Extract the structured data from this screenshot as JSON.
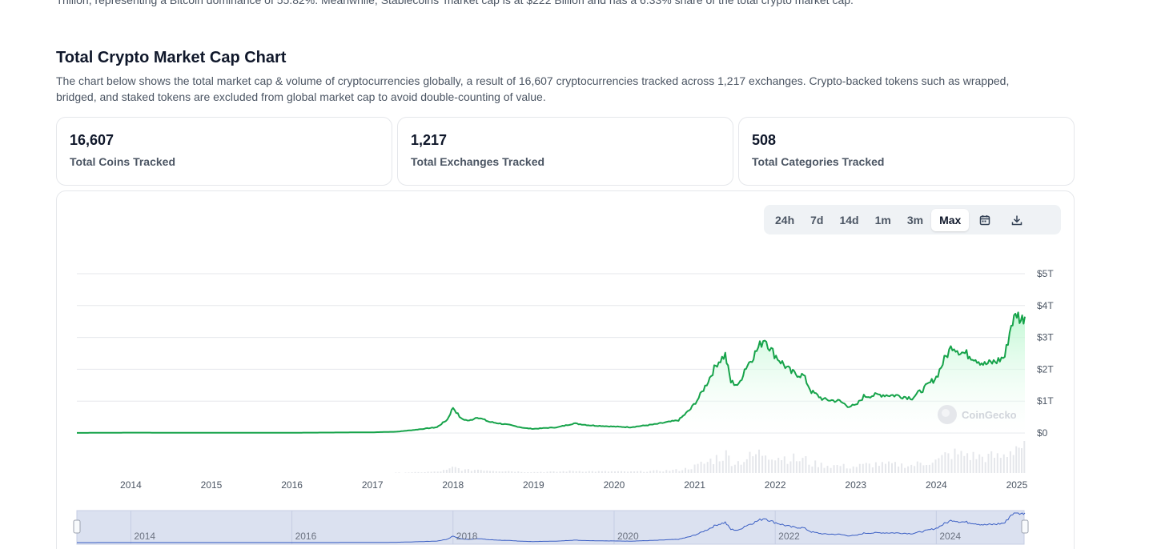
{
  "intro": {
    "text": "Trillion, representing a Bitcoin dominance of 55.82%. Meanwhile, Stablecoins' market cap is at $222 Billion and has a 6.33% share of the total crypto market cap."
  },
  "section": {
    "title": "Total Crypto Market Cap Chart",
    "description": "The chart below shows the total market cap & volume of cryptocurrencies globally, a result of 16,607 cryptocurrencies tracked across 1,217 exchanges. Crypto-backed tokens such as wrapped, bridged, and staked tokens are excluded from global market cap to avoid double-counting of value."
  },
  "stats": [
    {
      "value": "16,607",
      "label": "Total Coins Tracked"
    },
    {
      "value": "1,217",
      "label": "Total Exchanges Tracked"
    },
    {
      "value": "508",
      "label": "Total Categories Tracked"
    }
  ],
  "range_buttons": [
    {
      "label": "24h",
      "active": false
    },
    {
      "label": "7d",
      "active": false
    },
    {
      "label": "14d",
      "active": false
    },
    {
      "label": "1m",
      "active": false
    },
    {
      "label": "3m",
      "active": false
    },
    {
      "label": "Max",
      "active": true
    }
  ],
  "icons": {
    "calendar": "calendar-icon",
    "download": "download-icon",
    "watermark": "coingecko-logo-icon"
  },
  "colors": {
    "line": "#16a34a",
    "area_top": "#bbf7d0",
    "volume": "#e5e7eb",
    "navigator_fill": "#dbe1f0",
    "navigator_line": "#3b5fc4"
  },
  "watermark": "CoinGecko",
  "chart_data": {
    "type": "area",
    "title": "Total Crypto Market Cap",
    "y_unit": "USD trillions",
    "ylim": [
      0,
      5
    ],
    "y_ticks": [
      {
        "value": 0,
        "label": "$0"
      },
      {
        "value": 1,
        "label": "$1T"
      },
      {
        "value": 2,
        "label": "$2T"
      },
      {
        "value": 3,
        "label": "$3T"
      },
      {
        "value": 4,
        "label": "$4T"
      },
      {
        "value": 5,
        "label": "$5T"
      }
    ],
    "xlim": [
      2013.33,
      2025.1
    ],
    "x_ticks": [
      "2014",
      "2015",
      "2016",
      "2017",
      "2018",
      "2019",
      "2020",
      "2021",
      "2022",
      "2023",
      "2024",
      "2025"
    ],
    "series": [
      {
        "name": "Market Cap",
        "points": [
          [
            2013.33,
            0.002
          ],
          [
            2014.0,
            0.01
          ],
          [
            2015.0,
            0.005
          ],
          [
            2016.0,
            0.007
          ],
          [
            2017.0,
            0.02
          ],
          [
            2017.3,
            0.04
          ],
          [
            2017.5,
            0.09
          ],
          [
            2017.8,
            0.18
          ],
          [
            2017.93,
            0.42
          ],
          [
            2018.0,
            0.8
          ],
          [
            2018.1,
            0.45
          ],
          [
            2018.2,
            0.38
          ],
          [
            2018.3,
            0.5
          ],
          [
            2018.45,
            0.35
          ],
          [
            2018.7,
            0.25
          ],
          [
            2018.9,
            0.15
          ],
          [
            2019.0,
            0.13
          ],
          [
            2019.3,
            0.18
          ],
          [
            2019.5,
            0.3
          ],
          [
            2019.7,
            0.24
          ],
          [
            2020.0,
            0.2
          ],
          [
            2020.2,
            0.18
          ],
          [
            2020.5,
            0.27
          ],
          [
            2020.8,
            0.4
          ],
          [
            2020.95,
            0.75
          ],
          [
            2021.05,
            1.1
          ],
          [
            2021.15,
            1.55
          ],
          [
            2021.28,
            2.2
          ],
          [
            2021.38,
            2.45
          ],
          [
            2021.45,
            1.6
          ],
          [
            2021.55,
            1.5
          ],
          [
            2021.62,
            2.0
          ],
          [
            2021.75,
            2.5
          ],
          [
            2021.87,
            3.0
          ],
          [
            2021.95,
            2.6
          ],
          [
            2022.05,
            2.3
          ],
          [
            2022.2,
            1.9
          ],
          [
            2022.35,
            1.8
          ],
          [
            2022.45,
            1.3
          ],
          [
            2022.6,
            1.05
          ],
          [
            2022.8,
            1.0
          ],
          [
            2022.9,
            0.85
          ],
          [
            2023.0,
            0.85
          ],
          [
            2023.1,
            1.15
          ],
          [
            2023.3,
            1.2
          ],
          [
            2023.5,
            1.18
          ],
          [
            2023.7,
            1.1
          ],
          [
            2023.85,
            1.4
          ],
          [
            2024.0,
            1.75
          ],
          [
            2024.1,
            2.3
          ],
          [
            2024.2,
            2.75
          ],
          [
            2024.3,
            2.55
          ],
          [
            2024.45,
            2.4
          ],
          [
            2024.6,
            2.15
          ],
          [
            2024.75,
            2.25
          ],
          [
            2024.85,
            2.4
          ],
          [
            2024.93,
            3.4
          ],
          [
            2025.0,
            3.75
          ],
          [
            2025.05,
            3.55
          ],
          [
            2025.1,
            3.65
          ]
        ]
      }
    ],
    "navigator_x_ticks": [
      "2014",
      "2016",
      "2018",
      "2020",
      "2022",
      "2024"
    ]
  }
}
